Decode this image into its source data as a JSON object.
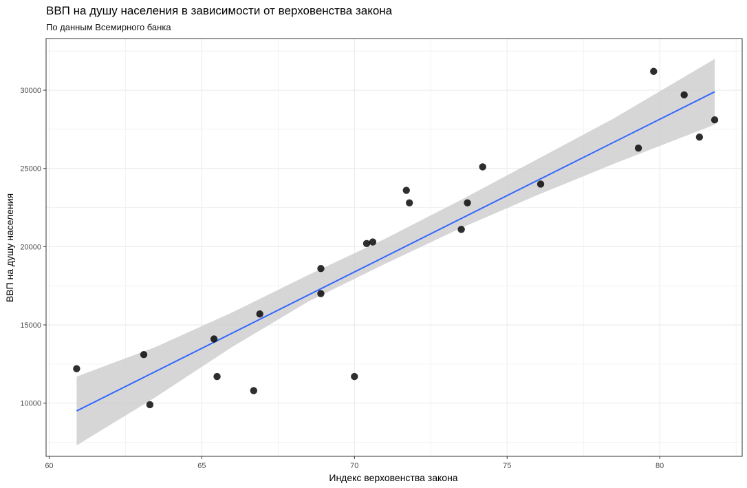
{
  "chart_data": {
    "type": "scatter",
    "title": "ВВП на душу населения в зависимости от верховенства закона",
    "subtitle": "По данным Всемирного банка",
    "xlabel": "Индекс верховенства закона",
    "ylabel": "ВВП на душу населения",
    "xlim": [
      59.9,
      82.7
    ],
    "ylim": [
      6600,
      33300
    ],
    "x_ticks": [
      60,
      65,
      70,
      75,
      80
    ],
    "y_ticks": [
      10000,
      15000,
      20000,
      25000,
      30000
    ],
    "grid": true,
    "colors": {
      "points": "#000000",
      "trend": "#3366ff",
      "ribbon": "#cccccc",
      "grid": "#ebebeb",
      "panel_border": "#333333"
    },
    "points": [
      {
        "x": 60.9,
        "y": 12200
      },
      {
        "x": 63.1,
        "y": 13100
      },
      {
        "x": 63.3,
        "y": 9900
      },
      {
        "x": 65.4,
        "y": 14100
      },
      {
        "x": 65.5,
        "y": 11700
      },
      {
        "x": 66.7,
        "y": 10800
      },
      {
        "x": 66.9,
        "y": 15700
      },
      {
        "x": 68.9,
        "y": 18600
      },
      {
        "x": 68.9,
        "y": 17000
      },
      {
        "x": 70.0,
        "y": 11700
      },
      {
        "x": 70.4,
        "y": 20200
      },
      {
        "x": 70.6,
        "y": 20300
      },
      {
        "x": 71.7,
        "y": 23600
      },
      {
        "x": 71.8,
        "y": 22800
      },
      {
        "x": 73.5,
        "y": 21100
      },
      {
        "x": 73.7,
        "y": 22800
      },
      {
        "x": 74.2,
        "y": 25100
      },
      {
        "x": 76.1,
        "y": 24000
      },
      {
        "x": 79.3,
        "y": 26300
      },
      {
        "x": 79.8,
        "y": 31200
      },
      {
        "x": 80.8,
        "y": 29700
      },
      {
        "x": 81.3,
        "y": 27000
      },
      {
        "x": 81.8,
        "y": 28100
      }
    ],
    "trend": {
      "x_start": 60.9,
      "y_start": 9500,
      "x_end": 81.8,
      "y_end": 29900,
      "ribbon": [
        {
          "x": 60.9,
          "lo": 7300,
          "hi": 11700
        },
        {
          "x": 63.5,
          "lo": 10400,
          "hi": 13600
        },
        {
          "x": 66.0,
          "lo": 13600,
          "hi": 15800
        },
        {
          "x": 68.5,
          "lo": 16500,
          "hi": 18200
        },
        {
          "x": 71.0,
          "lo": 18900,
          "hi": 20500
        },
        {
          "x": 73.5,
          "lo": 21200,
          "hi": 23000
        },
        {
          "x": 76.0,
          "lo": 23300,
          "hi": 25600
        },
        {
          "x": 78.5,
          "lo": 25300,
          "hi": 28200
        },
        {
          "x": 81.8,
          "lo": 27800,
          "hi": 32000
        }
      ]
    }
  }
}
